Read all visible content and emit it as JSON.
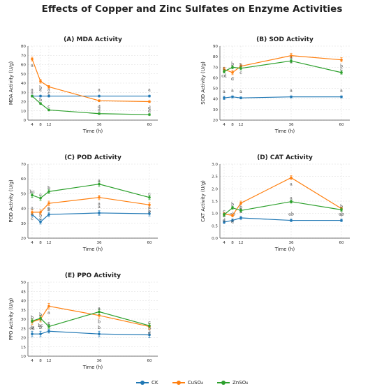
{
  "title": "Effects of Copper and Zinc Sulfates on Enzyme Activities",
  "colors": {
    "CK": "#1f77b4",
    "CuSO4": "#ff7f0e",
    "ZnSO4": "#2ca02c"
  },
  "legend": [
    "CK",
    "CuSO₄",
    "ZnSO₄"
  ],
  "chart_data": [
    {
      "type": "line",
      "title": "(A) MDA Activity",
      "xlabel": "Time (h)",
      "ylabel": "MDA Activity (U/g)",
      "x": [
        4,
        8,
        12,
        36,
        60
      ],
      "xlim": [
        2,
        64
      ],
      "ylim": [
        0,
        80
      ],
      "yticks": [
        0,
        10,
        20,
        30,
        40,
        50,
        60,
        70,
        80
      ],
      "grid": true,
      "series": [
        {
          "name": "CK",
          "values": [
            26,
            26,
            26,
            26,
            26
          ],
          "errors": [
            1,
            1,
            1,
            1,
            1
          ],
          "letters": [
            "a",
            "a",
            "a",
            "a",
            "a"
          ]
        },
        {
          "name": "CuSO₄",
          "values": [
            66,
            42,
            36,
            21,
            20
          ],
          "errors": [
            2,
            2,
            1.5,
            1,
            1
          ],
          "letters": [
            "a",
            "b",
            "c",
            "d",
            "d"
          ]
        },
        {
          "name": "ZnSO₄",
          "values": [
            26,
            18,
            11,
            7,
            6
          ],
          "errors": [
            1,
            1,
            1,
            1,
            1
          ],
          "letters": [
            "a",
            "b",
            "c",
            "d",
            "d"
          ]
        }
      ]
    },
    {
      "type": "line",
      "title": "(B) SOD Activity",
      "xlabel": "Time (h)",
      "ylabel": "SOD Activity (U/g)",
      "x": [
        4,
        8,
        12,
        36,
        60
      ],
      "xlim": [
        2,
        64
      ],
      "ylim": [
        20,
        90
      ],
      "yticks": [
        20,
        30,
        40,
        50,
        60,
        70,
        80,
        90
      ],
      "grid": true,
      "series": [
        {
          "name": "CK",
          "values": [
            41,
            42,
            41,
            42,
            42
          ],
          "errors": [
            1.5,
            1,
            1,
            1,
            1
          ],
          "letters": [
            "a",
            "a",
            "a",
            "a",
            "a"
          ]
        },
        {
          "name": "CuSO₄",
          "values": [
            68,
            65,
            71,
            81,
            77
          ],
          "errors": [
            2,
            2,
            2,
            2,
            2
          ],
          "letters": [
            "cd",
            "d",
            "c",
            "a",
            "b"
          ]
        },
        {
          "name": "ZnSO₄",
          "values": [
            66,
            70,
            69,
            76,
            65
          ],
          "errors": [
            1.5,
            1.5,
            1.5,
            1.5,
            1.5
          ],
          "letters": [
            "c",
            "b",
            "b",
            "a",
            "c"
          ]
        }
      ]
    },
    {
      "type": "line",
      "title": "(C) POD Activity",
      "xlabel": "Time (h)",
      "ylabel": "POD Activity (U/g)",
      "x": [
        4,
        8,
        12,
        36,
        60
      ],
      "xlim": [
        2,
        64
      ],
      "ylim": [
        20,
        70
      ],
      "yticks": [
        20,
        30,
        40,
        50,
        60,
        70
      ],
      "grid": true,
      "series": [
        {
          "name": "CK",
          "values": [
            36,
            31,
            36,
            37,
            36.5
          ],
          "errors": [
            1.5,
            1.5,
            1.5,
            1.5,
            1.5
          ],
          "letters": [
            "a",
            "b",
            "a",
            "a",
            "a"
          ]
        },
        {
          "name": "CuSO₄",
          "values": [
            37.5,
            37.5,
            43.5,
            47.5,
            42.5
          ],
          "errors": [
            1.5,
            1.5,
            1.5,
            1.5,
            1.5
          ],
          "letters": [
            "c",
            "c",
            "b",
            "a",
            "b"
          ]
        },
        {
          "name": "ZnSO₄",
          "values": [
            49,
            47,
            51.5,
            56.5,
            47.5
          ],
          "errors": [
            1.5,
            1.5,
            1.5,
            1.5,
            1.5
          ],
          "letters": [
            "bc",
            "c",
            "b",
            "a",
            "c"
          ]
        }
      ]
    },
    {
      "type": "line",
      "title": "(D) CAT Activity",
      "xlabel": "Time (h)",
      "ylabel": "CAT Activity (U/g)",
      "x": [
        4,
        8,
        12,
        36,
        60
      ],
      "xlim": [
        2,
        64
      ],
      "ylim": [
        0,
        3
      ],
      "yticks": [
        0.0,
        0.5,
        1.0,
        1.5,
        2.0,
        2.5,
        3.0
      ],
      "grid": true,
      "series": [
        {
          "name": "CK",
          "values": [
            0.65,
            0.72,
            0.82,
            0.72,
            0.72
          ],
          "errors": [
            0.06,
            0.06,
            0.06,
            0.05,
            0.05
          ],
          "letters": [
            "b",
            "ab",
            "a",
            "ab",
            "ab"
          ]
        },
        {
          "name": "CuSO₄",
          "values": [
            0.98,
            0.92,
            1.42,
            2.45,
            1.2
          ],
          "errors": [
            0.06,
            0.06,
            0.08,
            0.08,
            0.06
          ],
          "letters": [
            "d",
            "d",
            "b",
            "a",
            "c"
          ]
        },
        {
          "name": "ZnSO₄",
          "values": [
            0.95,
            1.23,
            1.12,
            1.48,
            1.15
          ],
          "errors": [
            0.06,
            0.06,
            0.06,
            0.06,
            0.06
          ],
          "letters": [
            "c",
            "b",
            "b",
            "a",
            "b"
          ]
        }
      ]
    },
    {
      "type": "line",
      "title": "(E) PPO Activity",
      "xlabel": "Time (h)",
      "ylabel": "PPO Activity (U/g)",
      "x": [
        4,
        8,
        12,
        36,
        60
      ],
      "xlim": [
        2,
        64
      ],
      "ylim": [
        10,
        50
      ],
      "yticks": [
        10,
        15,
        20,
        25,
        30,
        35,
        40,
        45,
        50
      ],
      "grid": true,
      "series": [
        {
          "name": "CK",
          "values": [
            22,
            22,
            23.5,
            22,
            21.5
          ],
          "errors": [
            1.5,
            1.5,
            1,
            1.5,
            1.5
          ],
          "letters": [
            "b",
            "b",
            "a",
            "b",
            "b"
          ]
        },
        {
          "name": "CuSO₄",
          "values": [
            28.5,
            30,
            37,
            32,
            26
          ],
          "errors": [
            1.5,
            1.5,
            1.5,
            1.5,
            1.5
          ],
          "letters": [
            "cd",
            "bc",
            "a",
            "b",
            "d"
          ]
        },
        {
          "name": "ZnSO₄",
          "values": [
            29,
            30.5,
            26,
            34,
            26.5
          ],
          "errors": [
            1,
            1.5,
            1,
            1.5,
            1
          ],
          "letters": [
            "b",
            "b",
            "c",
            "a",
            "c"
          ]
        }
      ]
    }
  ]
}
